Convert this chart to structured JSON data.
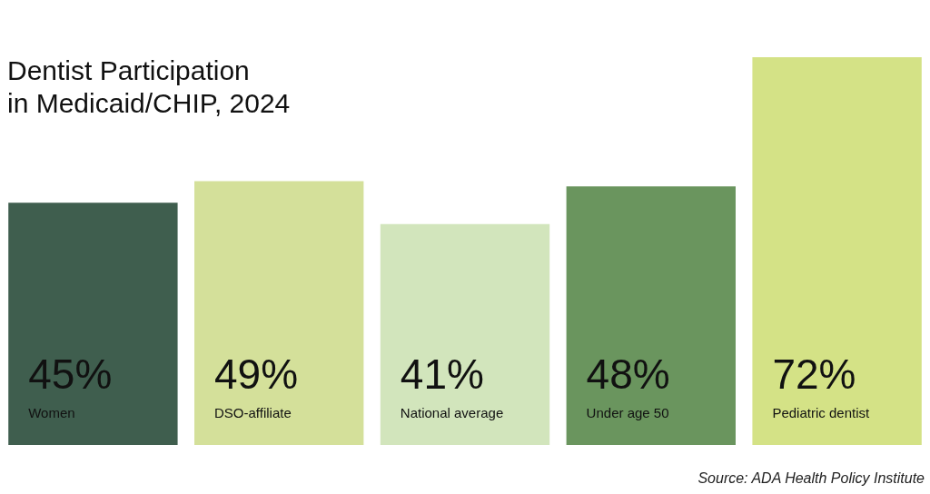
{
  "chart_data": {
    "type": "bar",
    "title": "Dentist Participation\nin Medicaid/CHIP, 2024",
    "categories": [
      "Women",
      "DSO-affiliate",
      "National average",
      "Under age 50",
      "Pediatric dentist"
    ],
    "values": [
      45,
      49,
      41,
      48,
      72
    ],
    "value_labels": [
      "45%",
      "49%",
      "41%",
      "48%",
      "72%"
    ],
    "colors": [
      "#3f5e4e",
      "#d4e09a",
      "#d2e5bc",
      "#6a955e",
      "#d4e286"
    ],
    "annotations": [
      "Source: ADA Health Policy Institute"
    ]
  }
}
